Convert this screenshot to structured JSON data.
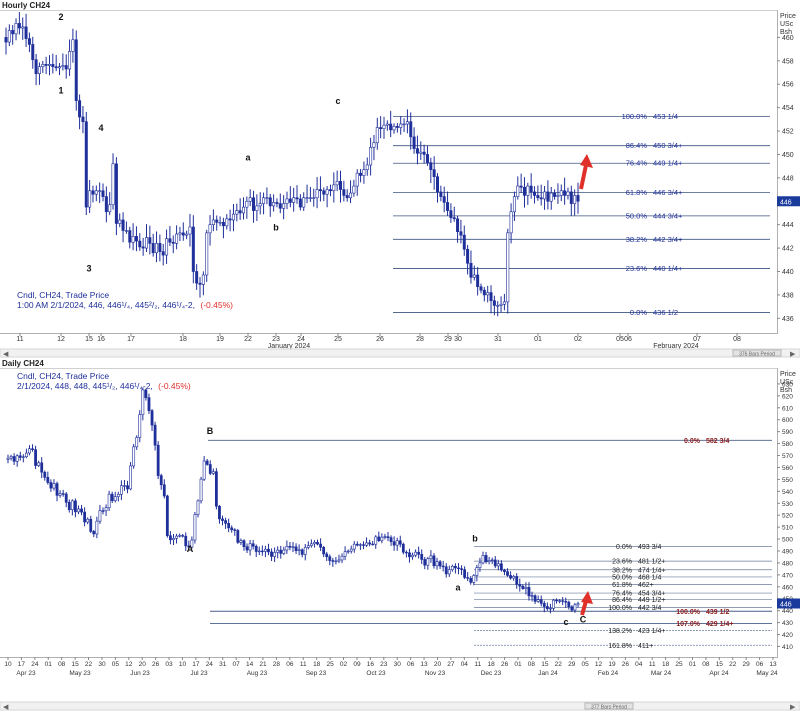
{
  "colors": {
    "candle": "#1f2f9a",
    "fib_line": "#2c3e6e",
    "accent_red": "#e0302a",
    "axis_text": "#333333",
    "current_price_bg": "#1a3a9c",
    "ratio_text": "#1f2f9a",
    "dark_red_label": "#8b1a1a"
  },
  "panels": {
    "hourly": {
      "panel_title": "Hourly CH24",
      "price_header": [
        "Price",
        "USc",
        "Bsh"
      ],
      "info_title": "Cndl, CH24, Trade Price",
      "info_values": "1:00 AM 2/1/2024, 446, 446¹/₄, 445²/₂, 446¹/₄-2,",
      "info_change": "(-0.45%)",
      "x_month_labels": [
        "January 2024",
        "February 2024"
      ],
      "scrollbar_caption": "376 Bars Period"
    },
    "daily": {
      "panel_title": "Daily CH24",
      "price_header": [
        "Price",
        "USc",
        "Bsh"
      ],
      "info_title": "Cndl, CH24, Trade Price",
      "info_values": "2/1/2024, 448, 448, 445¹/₂, 446¹/₄-2,",
      "info_change": "(-0.45%)",
      "scrollbar_caption": "377 Bars Period"
    }
  },
  "chart_data": [
    {
      "type": "candlestick",
      "title": "Hourly CH24",
      "ylim": [
        435,
        462
      ],
      "y_ticks": [
        436,
        438,
        440,
        442,
        444,
        446,
        448,
        450,
        452,
        454,
        456,
        458,
        460
      ],
      "x_ticks": [
        "11",
        "12",
        "15",
        "16",
        "17",
        "18",
        "19",
        "22",
        "23",
        "24",
        "25",
        "26",
        "28",
        "29",
        "30",
        "31",
        "01",
        "02",
        "05",
        "06",
        "07",
        "08"
      ],
      "current_price": 446,
      "wave_labels": [
        {
          "text": "2",
          "x": "12",
          "price": 461.5
        },
        {
          "text": "1",
          "x": "12",
          "price": 455.2
        },
        {
          "text": "3",
          "x": "15",
          "price": 440
        },
        {
          "text": "4",
          "x": "16",
          "price": 452
        },
        {
          "text": "a",
          "x": "22",
          "price": 449.5
        },
        {
          "text": "b",
          "x": "23",
          "price": 443.5
        },
        {
          "text": "c",
          "x": "25",
          "price": 454.3
        }
      ],
      "fib_levels": [
        {
          "ratio": "100.0%",
          "price": 453.25,
          "label": "453 1/4"
        },
        {
          "ratio": "86.4%",
          "price": 450.75,
          "label": "450 3/4+"
        },
        {
          "ratio": "76.4%",
          "price": 449.25,
          "label": "449 1/4+"
        },
        {
          "ratio": "61.8%",
          "price": 446.75,
          "label": "446 3/4+"
        },
        {
          "ratio": "50.0%",
          "price": 444.75,
          "label": "444 3/4+"
        },
        {
          "ratio": "38.2%",
          "price": 442.75,
          "label": "442 3/4+"
        },
        {
          "ratio": "23.6%",
          "price": 440.25,
          "label": "440 1/4+"
        },
        {
          "ratio": "0.0%",
          "price": 436.5,
          "label": "436 1/2"
        }
      ],
      "closes": [
        459.6,
        460.6,
        460.3,
        461.2,
        460.8,
        460.9,
        459.9,
        459.4,
        458.1,
        456.9,
        457.5,
        457.7,
        457.6,
        457.7,
        457.5,
        457.4,
        457.5,
        457.6,
        457.3,
        458.8,
        459.8,
        454.6,
        453.2,
        452.8,
        445.5,
        446.9,
        446.6,
        446.9,
        446.9,
        446.4,
        445.1,
        445.7,
        449.2,
        444.1,
        444.4,
        443.5,
        443.5,
        442.5,
        443.0,
        442.6,
        442.1,
        442.0,
        442.9,
        442.4,
        441.6,
        442.4,
        441.7,
        441.4,
        442.8,
        442.5,
        442.4,
        443.2,
        443.3,
        443.1,
        443.2,
        443.8,
        440.0,
        439.0,
        438.9,
        439.7,
        443.3,
        444.0,
        444.4,
        444.2,
        444.2,
        443.9,
        444.5,
        444.4,
        444.9,
        445.2,
        445.0,
        445.5,
        446.0,
        446.3,
        445.2,
        445.6,
        445.8,
        446.3,
        446.3,
        445.6,
        445.9,
        445.8,
        445.4,
        445.8,
        446.2,
        445.9,
        446.3,
        446.2,
        445.5,
        446.3,
        446.3,
        446.3,
        446.3,
        447.0,
        446.9,
        446.6,
        447.0,
        446.9,
        447.4,
        447.7,
        447.0,
        446.5,
        446.3,
        446.7,
        447.3,
        448.4,
        448.2,
        448.7,
        449.1,
        450.6,
        451.0,
        452.3,
        452.2,
        452.5,
        452.6,
        452.1,
        452.4,
        452.3,
        452.6,
        452.6,
        452.8,
        451.5,
        450.5,
        450.1,
        450.2,
        450.0,
        449.3,
        448.7,
        448.1,
        446.8,
        446.4,
        445.9,
        445.2,
        444.6,
        444.5,
        443.4,
        443.1,
        441.9,
        440.7,
        439.5,
        439.7,
        438.7,
        438.4,
        438.0,
        438.2,
        437.5,
        437.1,
        437.1,
        437.2,
        437.4,
        443.3,
        445.1,
        446.4,
        447.3,
        447.2,
        446.5,
        447.3,
        446.8,
        446.5,
        446.3,
        446.2,
        446.8,
        446.0,
        446.7,
        446.4,
        446.5,
        446.9,
        446.5,
        446.8,
        445.8,
        446.5,
        446.0
      ]
    },
    {
      "type": "candlestick",
      "title": "Daily CH24",
      "ylim": [
        402,
        640
      ],
      "y_ticks": [
        410,
        420,
        430,
        440,
        450,
        460,
        470,
        480,
        490,
        500,
        510,
        520,
        530,
        540,
        550,
        560,
        570,
        580,
        590,
        600,
        610,
        620,
        630
      ],
      "x_ticks": [
        "10",
        "17",
        "24",
        "01",
        "08",
        "15",
        "22",
        "30",
        "05",
        "12",
        "20",
        "26",
        "03",
        "10",
        "17",
        "24",
        "31",
        "07",
        "14",
        "21",
        "28",
        "06",
        "11",
        "18",
        "25",
        "02",
        "09",
        "16",
        "23",
        "30",
        "06",
        "13",
        "20",
        "27",
        "04",
        "11",
        "18",
        "26",
        "01",
        "08",
        "15",
        "22",
        "29",
        "05",
        "12",
        "19",
        "26",
        "04",
        "11",
        "18",
        "25",
        "01",
        "08",
        "15",
        "22",
        "29",
        "06",
        "13"
      ],
      "x_month_labels": [
        "Apr 23",
        "May 23",
        "Jun 23",
        "Jul 23",
        "Aug 23",
        "Sep 23",
        "Oct 23",
        "Nov 23",
        "Dec 23",
        "Jan 24",
        "Feb 24",
        "Mar 24",
        "Apr 24",
        "May 24"
      ],
      "current_price": 446,
      "wave_labels": [
        {
          "text": "A",
          "x": "05",
          "price": 489
        },
        {
          "text": "B",
          "x": "26",
          "price": 588
        },
        {
          "text": "a",
          "x": "06",
          "price": 457
        },
        {
          "text": "b",
          "x": "11",
          "price": 498
        },
        {
          "text": "c",
          "x": "01",
          "price": 428
        },
        {
          "text": "C",
          "x": "05",
          "price": 430
        }
      ],
      "fib_levels": [
        {
          "ratio": "0.0%",
          "price": 582.75,
          "label": "582 3/4",
          "style": "dark"
        },
        {
          "ratio": "0.0%",
          "price": 493.75,
          "label": "493 3/4",
          "style": "normal"
        },
        {
          "ratio": "23.6%",
          "price": 481.5,
          "label": "481 1/2+",
          "style": "normal"
        },
        {
          "ratio": "38.2%",
          "price": 474.25,
          "label": "474 1/4+",
          "style": "normal"
        },
        {
          "ratio": "50.0%",
          "price": 468.25,
          "label": "468 1/4",
          "style": "normal"
        },
        {
          "ratio": "61.8%",
          "price": 462,
          "label": "462+",
          "style": "normal"
        },
        {
          "ratio": "76.4%",
          "price": 454.75,
          "label": "454 3/4+",
          "style": "normal"
        },
        {
          "ratio": "86.4%",
          "price": 449.5,
          "label": "449 1/2+",
          "style": "normal"
        },
        {
          "ratio": "100.0%",
          "price": 442.75,
          "label": "442 3/4",
          "style": "normal"
        },
        {
          "ratio": "100.0%",
          "price": 439.5,
          "label": "439 1/2",
          "style": "dark"
        },
        {
          "ratio": "107.0%",
          "price": 429.25,
          "label": "429 1/4+",
          "style": "dark"
        },
        {
          "ratio": "138.2%",
          "price": 423.25,
          "label": "423 1/4+",
          "style": "normal"
        },
        {
          "ratio": "161.8%",
          "price": 411,
          "label": "411+",
          "style": "normal"
        }
      ],
      "closes": [
        567.8,
        569.2,
        565.1,
        569.8,
        568.4,
        569.0,
        572.1,
        575.7,
        574.9,
        561.6,
        563.9,
        556.0,
        551.7,
        547.4,
        542.7,
        546.5,
        536.6,
        538.1,
        537.8,
        530.8,
        524.6,
        532.0,
        522.8,
        525.2,
        522.6,
        514.3,
        516.6,
        506.4,
        504.3,
        515.0,
        523.8,
        523.7,
        526.3,
        537.6,
        532.2,
        535.6,
        537.5,
        544.8,
        544.8,
        542.0,
        561.3,
        577.3,
        585.1,
        604.3,
        625.0,
        618.5,
        607.6,
        595.5,
        578.7,
        553.2,
        545.5,
        536.1,
        502.8,
        499.4,
        500.6,
        502.5,
        503.0,
        502.4,
        494.3,
        493.2,
        499.2,
        520.6,
        532.0,
        550.2,
        565.4,
        562.5,
        555.0,
        556.5,
        527.5,
        516.9,
        515.5,
        513.2,
        509.4,
        507.8,
        507.2,
        497.2,
        498.7,
        493.6,
        490.8,
        496.1,
        494.0,
        489.6,
        490.0,
        489.7,
        491.5,
        489.2,
        485.4,
        488.8,
        490.7,
        487.9,
        490.8,
        493.9,
        493.2,
        493.5,
        490.3,
        491.0,
        487.1,
        493.0,
        494.5,
        496.0,
        497.3,
        495.8,
        493.1,
        487.5,
        485.2,
        482.0,
        481.3,
        481.6,
        482.5,
        485.6,
        489.4,
        489.9,
        491.6,
        495.7,
        494.9,
        495.3,
        494.8,
        496.8,
        495.8,
        495.7,
        501.8,
        498.6,
        501.6,
        502.0,
        501.2,
        497.8,
        494.9,
        498.6,
        495.7,
        489.0,
        488.5,
        485.1,
        486.5,
        489.0,
        487.2,
        482.9,
        478.1,
        483.5,
        485.9,
        477.6,
        481.0,
        477.4,
        476.8,
        470.8,
        474.3,
        477.2,
        475.8,
        475.2,
        474.4,
        467.8,
        467.1,
        463.7,
        469.5,
        476.0,
        480.0,
        486.3,
        481.0,
        482.1,
        482.5,
        477.5,
        479.3,
        474.1,
        472.7,
        469.5,
        467.3,
        468.7,
        462.0,
        460.5,
        458.5,
        459.5,
        452.4,
        452.6,
        447.8,
        449.2,
        446.1,
        443.5,
        441.6,
        442.0,
        448.8,
        448.2,
        448.4,
        447.8,
        447.1,
        443.3,
        440.5,
        444.9,
        446.0
      ]
    }
  ]
}
